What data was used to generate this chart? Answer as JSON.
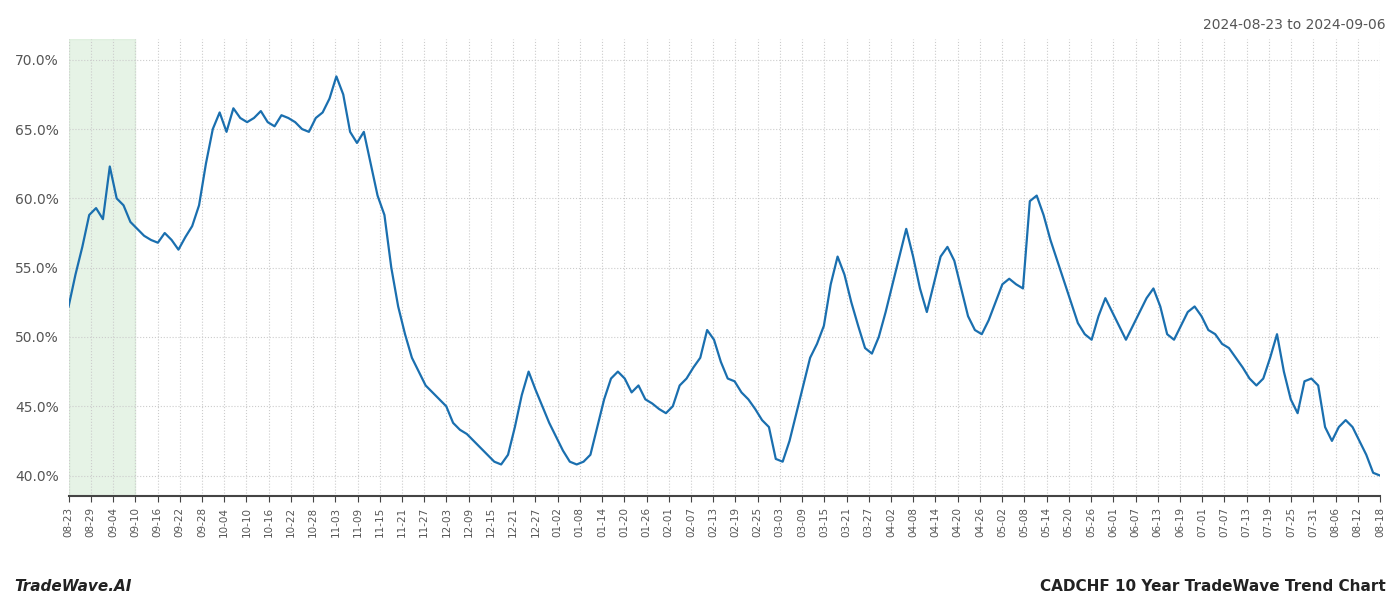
{
  "title_right": "2024-08-23 to 2024-09-06",
  "title_bottom_left": "TradeWave.AI",
  "title_bottom_right": "CADCHF 10 Year TradeWave Trend Chart",
  "line_color": "#1a6faf",
  "line_width": 1.6,
  "background_color": "#ffffff",
  "grid_color": "#cccccc",
  "highlight_color": "#c8e6c9",
  "highlight_alpha": 0.45,
  "ylim": [
    38.5,
    71.5
  ],
  "yticks": [
    40.0,
    45.0,
    50.0,
    55.0,
    60.0,
    65.0,
    70.0
  ],
  "x_labels": [
    "08-23",
    "08-29",
    "09-04",
    "09-10",
    "09-16",
    "09-22",
    "09-28",
    "10-04",
    "10-10",
    "10-16",
    "10-22",
    "10-28",
    "11-03",
    "11-09",
    "11-15",
    "11-21",
    "11-27",
    "12-03",
    "12-09",
    "12-15",
    "12-21",
    "12-27",
    "01-02",
    "01-08",
    "01-14",
    "01-20",
    "01-26",
    "02-01",
    "02-07",
    "02-13",
    "02-19",
    "02-25",
    "03-03",
    "03-09",
    "03-15",
    "03-21",
    "03-27",
    "04-02",
    "04-08",
    "04-14",
    "04-20",
    "04-26",
    "05-02",
    "05-08",
    "05-14",
    "05-20",
    "05-26",
    "06-01",
    "06-07",
    "06-13",
    "06-19",
    "07-01",
    "07-07",
    "07-13",
    "07-19",
    "07-25",
    "07-31",
    "08-06",
    "08-12",
    "08-18"
  ],
  "highlight_xstart": 0,
  "highlight_xend": 3,
  "values": [
    52.2,
    54.5,
    56.5,
    58.8,
    59.3,
    58.5,
    62.3,
    60.0,
    59.5,
    58.3,
    57.8,
    57.3,
    57.0,
    56.8,
    57.5,
    57.0,
    56.3,
    57.2,
    58.0,
    59.5,
    62.5,
    65.0,
    66.2,
    64.8,
    66.5,
    65.8,
    65.5,
    65.8,
    66.3,
    65.5,
    65.2,
    66.0,
    65.8,
    65.5,
    65.0,
    64.8,
    65.8,
    66.2,
    67.2,
    68.8,
    67.5,
    64.8,
    64.0,
    64.8,
    62.5,
    60.2,
    58.8,
    55.0,
    52.2,
    50.2,
    48.5,
    47.5,
    46.5,
    46.0,
    45.5,
    45.0,
    43.8,
    43.3,
    43.0,
    42.5,
    42.0,
    41.5,
    41.0,
    40.8,
    41.5,
    43.5,
    45.8,
    47.5,
    46.2,
    45.0,
    43.8,
    42.8,
    41.8,
    41.0,
    40.8,
    41.0,
    41.5,
    43.5,
    45.5,
    47.0,
    47.5,
    47.0,
    46.0,
    46.5,
    45.5,
    45.2,
    44.8,
    44.5,
    45.0,
    46.5,
    47.0,
    47.8,
    48.5,
    50.5,
    49.8,
    48.2,
    47.0,
    46.8,
    46.0,
    45.5,
    44.8,
    44.0,
    43.5,
    41.2,
    41.0,
    42.5,
    44.5,
    46.5,
    48.5,
    49.5,
    50.8,
    53.8,
    55.8,
    54.5,
    52.5,
    50.8,
    49.2,
    48.8,
    50.0,
    51.8,
    53.8,
    55.8,
    57.8,
    55.8,
    53.5,
    51.8,
    53.8,
    55.8,
    56.5,
    55.5,
    53.5,
    51.5,
    50.5,
    50.2,
    51.2,
    52.5,
    53.8,
    54.2,
    53.8,
    53.5,
    59.8,
    60.2,
    58.8,
    57.0,
    55.5,
    54.0,
    52.5,
    51.0,
    50.2,
    49.8,
    51.5,
    52.8,
    51.8,
    50.8,
    49.8,
    50.8,
    51.8,
    52.8,
    53.5,
    52.2,
    50.2,
    49.8,
    50.8,
    51.8,
    52.2,
    51.5,
    50.5,
    50.2,
    49.5,
    49.2,
    48.5,
    47.8,
    47.0,
    46.5,
    47.0,
    48.5,
    50.2,
    47.5,
    45.5,
    44.5,
    46.8,
    47.0,
    46.5,
    43.5,
    42.5,
    43.5,
    44.0,
    43.5,
    42.5,
    41.5,
    40.2,
    40.0
  ]
}
